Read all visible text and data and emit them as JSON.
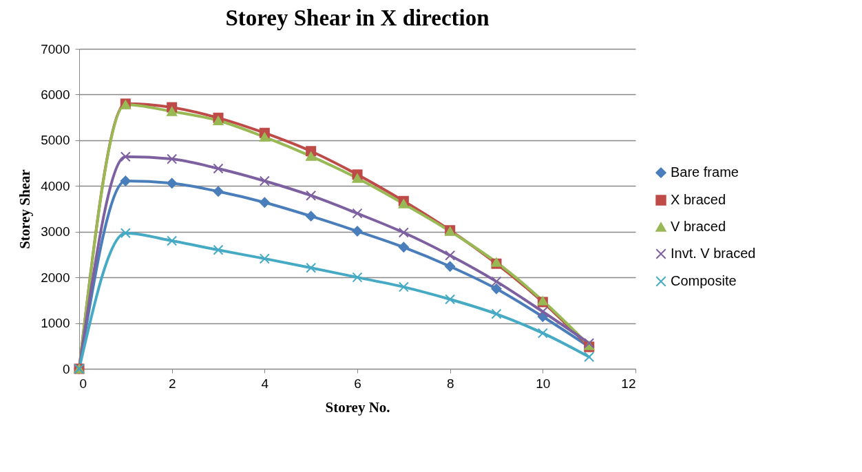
{
  "chart_data": {
    "type": "line",
    "title": "Storey Shear in X direction",
    "xlabel": "Storey No.",
    "ylabel": "Storey Shear",
    "x": [
      0,
      1,
      2,
      3,
      4,
      5,
      6,
      7,
      8,
      9,
      10,
      11
    ],
    "xlim": [
      0,
      12
    ],
    "xticks": [
      0,
      2,
      4,
      6,
      8,
      10,
      12
    ],
    "ylim": [
      0,
      7000
    ],
    "yticks": [
      0,
      1000,
      2000,
      3000,
      4000,
      5000,
      6000,
      7000
    ],
    "grid": "y",
    "legend": "right",
    "line_style": "solid",
    "series": [
      {
        "name": "Bare frame",
        "color": "#4a7ebb",
        "marker": "diamond",
        "values": [
          0,
          4110,
          4060,
          3880,
          3640,
          3340,
          3010,
          2660,
          2240,
          1750,
          1140,
          480
        ]
      },
      {
        "name": "X braced",
        "color": "#be4b48",
        "marker": "square",
        "values": [
          0,
          5800,
          5720,
          5490,
          5160,
          4760,
          4250,
          3670,
          3030,
          2300,
          1460,
          480
        ]
      },
      {
        "name": "V braced",
        "color": "#98b954",
        "marker": "triangle",
        "values": [
          0,
          5780,
          5630,
          5430,
          5070,
          4650,
          4170,
          3610,
          3010,
          2330,
          1490,
          510
        ]
      },
      {
        "name": "Invt. V braced",
        "color": "#7d60a0",
        "marker": "cross",
        "values": [
          0,
          4640,
          4590,
          4380,
          4110,
          3790,
          3400,
          2980,
          2480,
          1910,
          1250,
          560
        ]
      },
      {
        "name": "Composite",
        "color": "#46aac5",
        "marker": "cross",
        "values": [
          0,
          2970,
          2800,
          2600,
          2410,
          2210,
          2000,
          1790,
          1520,
          1200,
          780,
          260
        ]
      }
    ]
  }
}
